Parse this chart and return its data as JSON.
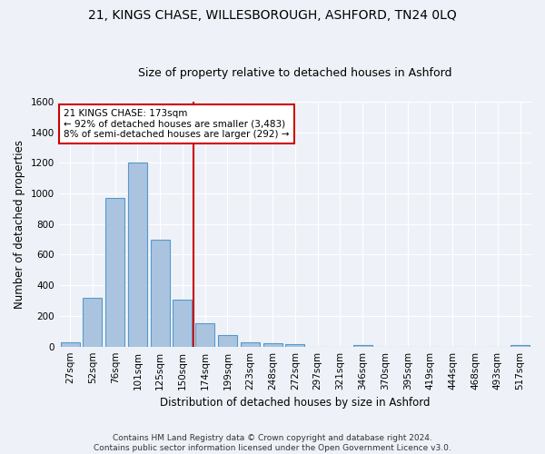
{
  "title1": "21, KINGS CHASE, WILLESBOROUGH, ASHFORD, TN24 0LQ",
  "title2": "Size of property relative to detached houses in Ashford",
  "xlabel": "Distribution of detached houses by size in Ashford",
  "ylabel": "Number of detached properties",
  "footer1": "Contains HM Land Registry data © Crown copyright and database right 2024.",
  "footer2": "Contains public sector information licensed under the Open Government Licence v3.0.",
  "categories": [
    "27sqm",
    "52sqm",
    "76sqm",
    "101sqm",
    "125sqm",
    "150sqm",
    "174sqm",
    "199sqm",
    "223sqm",
    "248sqm",
    "272sqm",
    "297sqm",
    "321sqm",
    "346sqm",
    "370sqm",
    "395sqm",
    "419sqm",
    "444sqm",
    "468sqm",
    "493sqm",
    "517sqm"
  ],
  "values": [
    30,
    320,
    970,
    1200,
    700,
    305,
    155,
    75,
    30,
    20,
    15,
    0,
    0,
    12,
    0,
    0,
    0,
    0,
    0,
    0,
    12
  ],
  "bar_color": "#aac4e0",
  "bar_edge_color": "#5599cc",
  "vline_x_index": 5.5,
  "vline_color": "#cc0000",
  "annotation_text": "21 KINGS CHASE: 173sqm\n← 92% of detached houses are smaller (3,483)\n8% of semi-detached houses are larger (292) →",
  "annotation_box_color": "#ffffff",
  "annotation_box_edge_color": "#cc0000",
  "ylim": [
    0,
    1600
  ],
  "background_color": "#eef2f8",
  "fig_background_color": "#eef2f8",
  "grid_color": "#ffffff",
  "title_fontsize": 10,
  "subtitle_fontsize": 9,
  "axis_label_fontsize": 8.5,
  "tick_fontsize": 7.5,
  "footer_fontsize": 6.5
}
